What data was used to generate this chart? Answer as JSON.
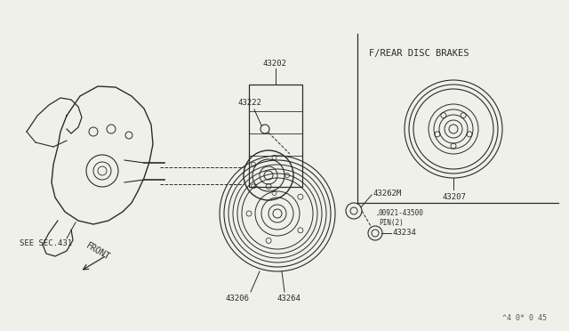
{
  "bg_color": "#f0f0eb",
  "line_color": "#2a2a2a",
  "title_bottom_right": "^4 0* 0 45",
  "label_43202": "43202",
  "label_43222": "43222",
  "label_43206": "43206",
  "label_43264": "43264",
  "label_43262M": "43262M",
  "label_00921": "00921-43500\nPIN(2)",
  "label_43234": "43234",
  "label_43207": "43207",
  "label_see_sec": "SEE SEC.431",
  "label_front": "FRONT",
  "label_disc": "F/REAR DISC BRAKES",
  "font_size_labels": 6.5,
  "font_size_disc": 7.5
}
